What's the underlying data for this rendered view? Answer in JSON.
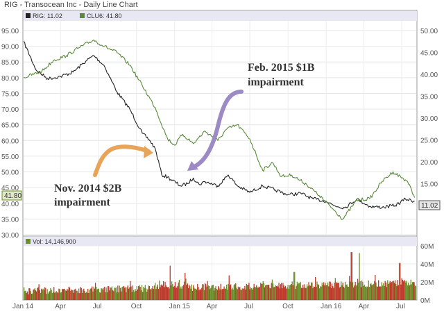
{
  "chart_data": [
    {
      "type": "line",
      "title": "RIG - Transocean Inc - Daily Line Chart",
      "legend": "top-left",
      "grid": true,
      "x_ticks": [
        "Jan 14",
        "Apr",
        "Jul",
        "Oct",
        "Jan 15",
        "Apr",
        "Jul",
        "Oct",
        "Jan 16",
        "Apr",
        "Jul"
      ],
      "y_left": {
        "lim": [
          30,
          95
        ],
        "ticks": [
          "95.00",
          "90.00",
          "85.00",
          "80.00",
          "75.00",
          "70.00",
          "65.00",
          "60.00",
          "55.00",
          "50.00",
          "45.00",
          "40.00",
          "35.00",
          "30.00"
        ]
      },
      "y_right": {
        "lim": [
          3.33,
          50
        ],
        "ticks": [
          "50.00",
          "45.00",
          "40.00",
          "35.00",
          "30.00",
          "25.00",
          "20.00",
          "15.00",
          "10.00"
        ]
      },
      "series": [
        {
          "name": "RIG",
          "legend_label": "RIG: 11.02",
          "axis": "right",
          "color": "#222222",
          "last_value": "11.02",
          "x": [
            "2014-01-02",
            "2014-02-01",
            "2014-03-01",
            "2014-04-01",
            "2014-05-01",
            "2014-06-01",
            "2014-06-20",
            "2014-07-15",
            "2014-08-15",
            "2014-09-15",
            "2014-10-15",
            "2014-11-01",
            "2014-11-15",
            "2014-12-01",
            "2014-12-15",
            "2015-01-15",
            "2015-02-01",
            "2015-02-15",
            "2015-03-01",
            "2015-03-15",
            "2015-04-15",
            "2015-05-10",
            "2015-06-01",
            "2015-07-01",
            "2015-08-01",
            "2015-09-01",
            "2015-10-01",
            "2015-11-01",
            "2015-12-01",
            "2016-01-01",
            "2016-01-20",
            "2016-02-15",
            "2016-03-15",
            "2016-04-15",
            "2016-05-15",
            "2016-06-15",
            "2016-07-10",
            "2016-08-01"
          ],
          "y": [
            47.5,
            41.0,
            39.0,
            39.5,
            40.5,
            43.0,
            44.3,
            42.0,
            36.0,
            32.0,
            26.5,
            25.0,
            23.0,
            17.0,
            16.5,
            14.5,
            15.0,
            16.3,
            14.8,
            15.5,
            14.5,
            17.0,
            14.5,
            13.0,
            14.5,
            13.5,
            12.5,
            12.8,
            11.5,
            11.0,
            10.0,
            9.5,
            11.5,
            9.8,
            9.6,
            10.0,
            11.5,
            11.0
          ]
        },
        {
          "name": "CLU6",
          "legend_label": "CLU6: 41.80",
          "axis": "left",
          "color": "#5a8a3a",
          "last_value": "41.80",
          "x": [
            "2014-01-02",
            "2014-02-15",
            "2014-03-15",
            "2014-04-15",
            "2014-05-15",
            "2014-06-20",
            "2014-07-15",
            "2014-08-15",
            "2014-09-15",
            "2014-10-15",
            "2014-11-15",
            "2014-12-15",
            "2015-01-01",
            "2015-01-20",
            "2015-02-15",
            "2015-03-15",
            "2015-04-15",
            "2015-05-05",
            "2015-06-01",
            "2015-07-01",
            "2015-08-01",
            "2015-08-25",
            "2015-09-15",
            "2015-10-10",
            "2015-11-15",
            "2015-12-15",
            "2016-01-15",
            "2016-02-10",
            "2016-03-15",
            "2016-04-15",
            "2016-05-15",
            "2016-06-10",
            "2016-07-15",
            "2016-08-01"
          ],
          "y": [
            80.0,
            82.0,
            85.5,
            87.0,
            89.5,
            92.0,
            90.0,
            88.0,
            84.0,
            77.5,
            70.5,
            60.5,
            58.5,
            62.0,
            59.0,
            63.0,
            60.0,
            63.5,
            65.0,
            60.5,
            50.5,
            53.0,
            48.5,
            49.0,
            46.0,
            42.5,
            38.5,
            35.0,
            41.0,
            41.5,
            47.0,
            50.0,
            47.0,
            41.8
          ]
        }
      ],
      "annotations": [
        {
          "lines": [
            "Nov. 2014 $2B",
            "impairment"
          ],
          "arrow_color": "#e8a55a",
          "arrow_points_to": "2014-11-15"
        },
        {
          "lines": [
            "Feb. 2015 $1B",
            "impairment"
          ],
          "arrow_color": "#9b8ac4",
          "arrow_points_to": "2015-01-20"
        }
      ],
      "badges": {
        "left": "41.80",
        "right": "11.02"
      }
    },
    {
      "type": "bar",
      "legend": "top-left",
      "legend_label": "Vol: 14,146,900",
      "y_lim": [
        0,
        60000000
      ],
      "y_ticks": [
        "60M",
        "40M",
        "20M",
        "0M"
      ],
      "bar_colors": [
        "#c0392b",
        "#6b8f2a"
      ],
      "notable_spikes": [
        {
          "x": "2014-12-20",
          "value": 38000000
        },
        {
          "x": "2015-01-25",
          "value": 30000000
        },
        {
          "x": "2015-10-15",
          "value": 31000000
        },
        {
          "x": "2016-03-01",
          "value": 53000000
        },
        {
          "x": "2016-03-20",
          "value": 52000000
        },
        {
          "x": "2016-06-25",
          "value": 41000000
        }
      ]
    }
  ]
}
